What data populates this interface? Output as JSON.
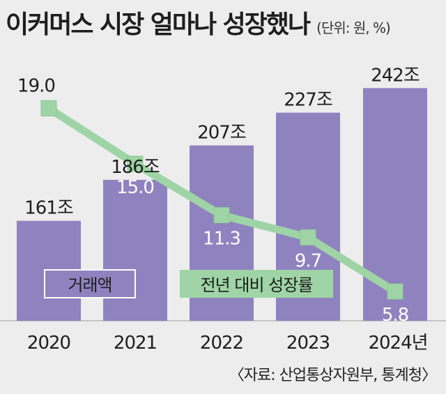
{
  "title": "이커머스 시장 얼마나 성장했나",
  "unit_note": "(단위: 원, %)",
  "source": "〈자료: 산업통상자원부, 통계청〉",
  "chart_data": {
    "type": "bar",
    "categories": [
      "2020",
      "2021",
      "2022",
      "2023",
      "2024년"
    ],
    "series": [
      {
        "name": "거래액",
        "type": "bar",
        "values": [
          161,
          186,
          207,
          227,
          242
        ],
        "labels": [
          "161조",
          "186조",
          "207조",
          "227조",
          "242조"
        ],
        "color": "#8f83bf"
      },
      {
        "name": "전년 대비 성장률",
        "type": "line",
        "values": [
          19.0,
          15.0,
          11.3,
          9.7,
          5.8
        ],
        "labels": [
          "19.0",
          "15.0",
          "11.3",
          "9.7",
          "5.8"
        ],
        "color": "#9fd4a6"
      }
    ],
    "legend": [
      "거래액",
      "전년 대비 성장률"
    ]
  }
}
